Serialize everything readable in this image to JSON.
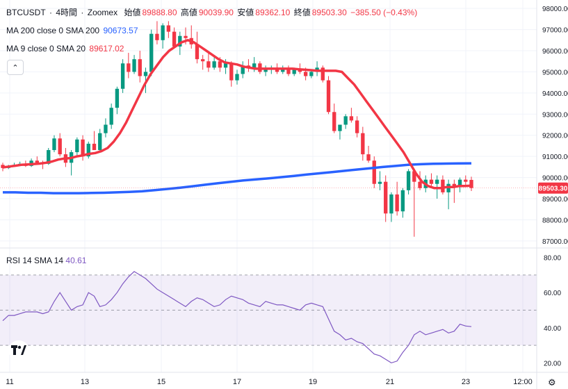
{
  "header": {
    "symbol": "BTCUSDT",
    "interval": "4時間",
    "exchange": "Zoomex",
    "open_label": "始値",
    "open": "89888.80",
    "high_label": "高値",
    "high": "90039.90",
    "low_label": "安値",
    "low": "89362.10",
    "close_label": "終値",
    "close": "89503.30",
    "change": "−385.50 (−0.43%)"
  },
  "ma200": {
    "label": "MA 200 close 0 SMA 200",
    "value": "90673.57",
    "color": "#2962ff"
  },
  "ma9": {
    "label": "MA 9 close 0 SMA 20",
    "value": "89617.02",
    "color": "#f23645"
  },
  "rsi": {
    "label": "RSI 14 SMA 14",
    "value": "40.61",
    "color": "#7e57c2"
  },
  "price_badge": "89503.30",
  "collapse_icon": "chevron-up-icon",
  "logo": "tradingview-logo",
  "settings_icon": "gear-icon",
  "chart_data": [
    {
      "type": "candlestick",
      "title": "BTCUSDT · 4時間 · Zoomex",
      "y_ticks": [
        "98000.00",
        "97000.00",
        "96000.00",
        "95000.00",
        "94000.00",
        "93000.00",
        "92000.00",
        "91000.00",
        "90000.00",
        "89000.00",
        "88000.00",
        "87000.00"
      ],
      "ylim": [
        86700,
        98400
      ],
      "x_ticks": [
        "11",
        "13",
        "15",
        "17",
        "19",
        "21",
        "23",
        "12:00"
      ],
      "candles": [
        [
          90600,
          90700,
          90300,
          90450
        ],
        [
          90450,
          90600,
          90400,
          90550
        ],
        [
          90550,
          90700,
          90500,
          90600
        ],
        [
          90600,
          90750,
          90550,
          90650
        ],
        [
          90650,
          90800,
          90500,
          90550
        ],
        [
          90550,
          90900,
          90500,
          90800
        ],
        [
          90800,
          91000,
          90600,
          90700
        ],
        [
          90700,
          90800,
          90400,
          90650
        ],
        [
          90650,
          91400,
          90600,
          91300
        ],
        [
          91300,
          92000,
          91200,
          91850
        ],
        [
          91850,
          92100,
          91000,
          91100
        ],
        [
          91100,
          91400,
          90500,
          90700
        ],
        [
          90700,
          91300,
          90100,
          91200
        ],
        [
          91200,
          91900,
          91000,
          91800
        ],
        [
          91800,
          92000,
          90800,
          91000
        ],
        [
          91000,
          91700,
          90900,
          91600
        ],
        [
          91600,
          92200,
          91300,
          91300
        ],
        [
          91300,
          92300,
          91200,
          92100
        ],
        [
          92100,
          92800,
          91900,
          92500
        ],
        [
          92500,
          93500,
          92300,
          93300
        ],
        [
          93300,
          94300,
          93000,
          94200
        ],
        [
          94200,
          95600,
          94000,
          95400
        ],
        [
          95400,
          95900,
          94700,
          95000
        ],
        [
          95000,
          95800,
          94900,
          95600
        ],
        [
          95600,
          96000,
          94500,
          94800
        ],
        [
          94800,
          95200,
          94000,
          95000
        ],
        [
          95000,
          97000,
          94800,
          96800
        ],
        [
          96800,
          97400,
          96300,
          96500
        ],
        [
          96500,
          97300,
          96100,
          97200
        ],
        [
          97200,
          97400,
          96600,
          96900
        ],
        [
          96900,
          97100,
          96200,
          96200
        ],
        [
          96200,
          96900,
          95800,
          96700
        ],
        [
          96700,
          97100,
          96300,
          96600
        ],
        [
          96600,
          97200,
          96100,
          96300
        ],
        [
          96300,
          96900,
          95400,
          95600
        ],
        [
          95600,
          95800,
          95100,
          95500
        ],
        [
          95500,
          95900,
          95000,
          95200
        ],
        [
          95200,
          95800,
          95100,
          95500
        ],
        [
          95500,
          95700,
          95000,
          95200
        ],
        [
          95200,
          95600,
          94900,
          95400
        ],
        [
          95400,
          95500,
          94300,
          94600
        ],
        [
          94600,
          95100,
          94400,
          94900
        ],
        [
          94900,
          95500,
          94700,
          95300
        ],
        [
          95300,
          95600,
          95000,
          95200
        ],
        [
          95200,
          95700,
          95000,
          95400
        ],
        [
          95400,
          95500,
          94900,
          95000
        ],
        [
          95000,
          95300,
          94800,
          95100
        ],
        [
          95100,
          95300,
          94900,
          95200
        ],
        [
          95200,
          95400,
          94900,
          95000
        ],
        [
          95000,
          95300,
          94900,
          95100
        ],
        [
          95100,
          95300,
          94800,
          94900
        ],
        [
          94900,
          95200,
          94800,
          95100
        ],
        [
          95100,
          95400,
          94900,
          95000
        ],
        [
          95000,
          95200,
          94600,
          94800
        ],
        [
          94800,
          95100,
          94700,
          95000
        ],
        [
          95000,
          95500,
          94800,
          95200
        ],
        [
          95200,
          95300,
          94500,
          94600
        ],
        [
          94600,
          94800,
          93000,
          93100
        ],
        [
          93100,
          93500,
          92100,
          92200
        ],
        [
          92200,
          92500,
          91800,
          92500
        ],
        [
          92500,
          93000,
          92300,
          92900
        ],
        [
          92900,
          93300,
          92600,
          92700
        ],
        [
          92700,
          92900,
          91900,
          92100
        ],
        [
          92100,
          92400,
          90800,
          91100
        ],
        [
          91100,
          91500,
          90700,
          90800
        ],
        [
          90800,
          91000,
          89500,
          89700
        ],
        [
          89700,
          90300,
          89400,
          89800
        ],
        [
          89800,
          90100,
          87900,
          88300
        ],
        [
          88300,
          89300,
          87900,
          89200
        ],
        [
          89200,
          89800,
          88200,
          88400
        ],
        [
          88400,
          89500,
          88100,
          89400
        ],
        [
          89400,
          90400,
          89200,
          90300
        ],
        [
          90300,
          90400,
          87200,
          89800
        ],
        [
          89800,
          90300,
          89400,
          89500
        ],
        [
          89500,
          90100,
          89300,
          89900
        ],
        [
          89900,
          90200,
          89600,
          89700
        ],
        [
          89700,
          90100,
          89000,
          89900
        ],
        [
          89900,
          90100,
          89200,
          89300
        ],
        [
          89300,
          89900,
          88500,
          89700
        ],
        [
          89700,
          89900,
          88800,
          89600
        ],
        [
          89600,
          90000,
          89300,
          89900
        ],
        [
          89900,
          90100,
          89600,
          89800
        ],
        [
          89888.8,
          90039.9,
          89362.1,
          89503.3
        ]
      ],
      "ma200": [
        89300,
        89300,
        89280,
        89280,
        89260,
        89260,
        89260,
        89270,
        89280,
        89300,
        89320,
        89350,
        89400,
        89460,
        89520,
        89590,
        89660,
        89730,
        89800,
        89860,
        89910,
        89960,
        90020,
        90080,
        90140,
        90200,
        90260,
        90320,
        90380,
        90440,
        90500,
        90550,
        90600,
        90630,
        90650,
        90660,
        90670,
        90673.57
      ],
      "ma9": [
        90480,
        90520,
        90560,
        90600,
        90620,
        90640,
        90660,
        90700,
        90760,
        90850,
        90900,
        90920,
        91000,
        91050,
        91120,
        91160,
        91250,
        91400,
        91700,
        92100,
        92600,
        93200,
        93800,
        94400,
        94900,
        95300,
        95700,
        96000,
        96200,
        96400,
        96500,
        96400,
        96200,
        96000,
        95800,
        95600,
        95450,
        95400,
        95350,
        95250,
        95200,
        95150,
        95150,
        95150,
        95150,
        95150,
        95150,
        95150,
        95120,
        95100,
        95080,
        95050,
        95050,
        95050,
        95050,
        95000,
        94700,
        94400,
        94000,
        93600,
        93200,
        92800,
        92400,
        92000,
        91600,
        91200,
        90700,
        90200,
        89800,
        89600,
        89500,
        89500,
        89550,
        89550,
        89600,
        89600,
        89617.02
      ],
      "current_price": "89503.30"
    },
    {
      "type": "line",
      "title": "RSI 14 SMA 14",
      "ylim": [
        15,
        85
      ],
      "y_ticks": [
        "80.00",
        "60.00",
        "40.00",
        "20.00"
      ],
      "bands": [
        30,
        50,
        70
      ],
      "values": [
        44,
        47,
        47,
        48,
        49,
        49,
        49,
        48,
        49,
        55,
        60,
        55,
        50,
        52,
        53,
        60,
        58,
        52,
        53,
        56,
        60,
        65,
        69,
        72,
        70,
        68,
        65,
        62,
        60,
        58,
        56,
        54,
        52,
        55,
        57,
        56,
        54,
        52,
        53,
        56,
        58,
        57,
        56,
        54,
        53,
        52,
        55,
        54,
        53,
        53,
        52,
        51,
        50,
        53,
        54,
        53,
        52,
        45,
        38,
        36,
        33,
        34,
        32,
        31,
        28,
        25,
        24,
        22,
        20,
        21,
        26,
        30,
        36,
        38,
        36,
        37,
        38,
        39,
        37,
        38,
        42,
        41,
        40.61
      ]
    }
  ]
}
